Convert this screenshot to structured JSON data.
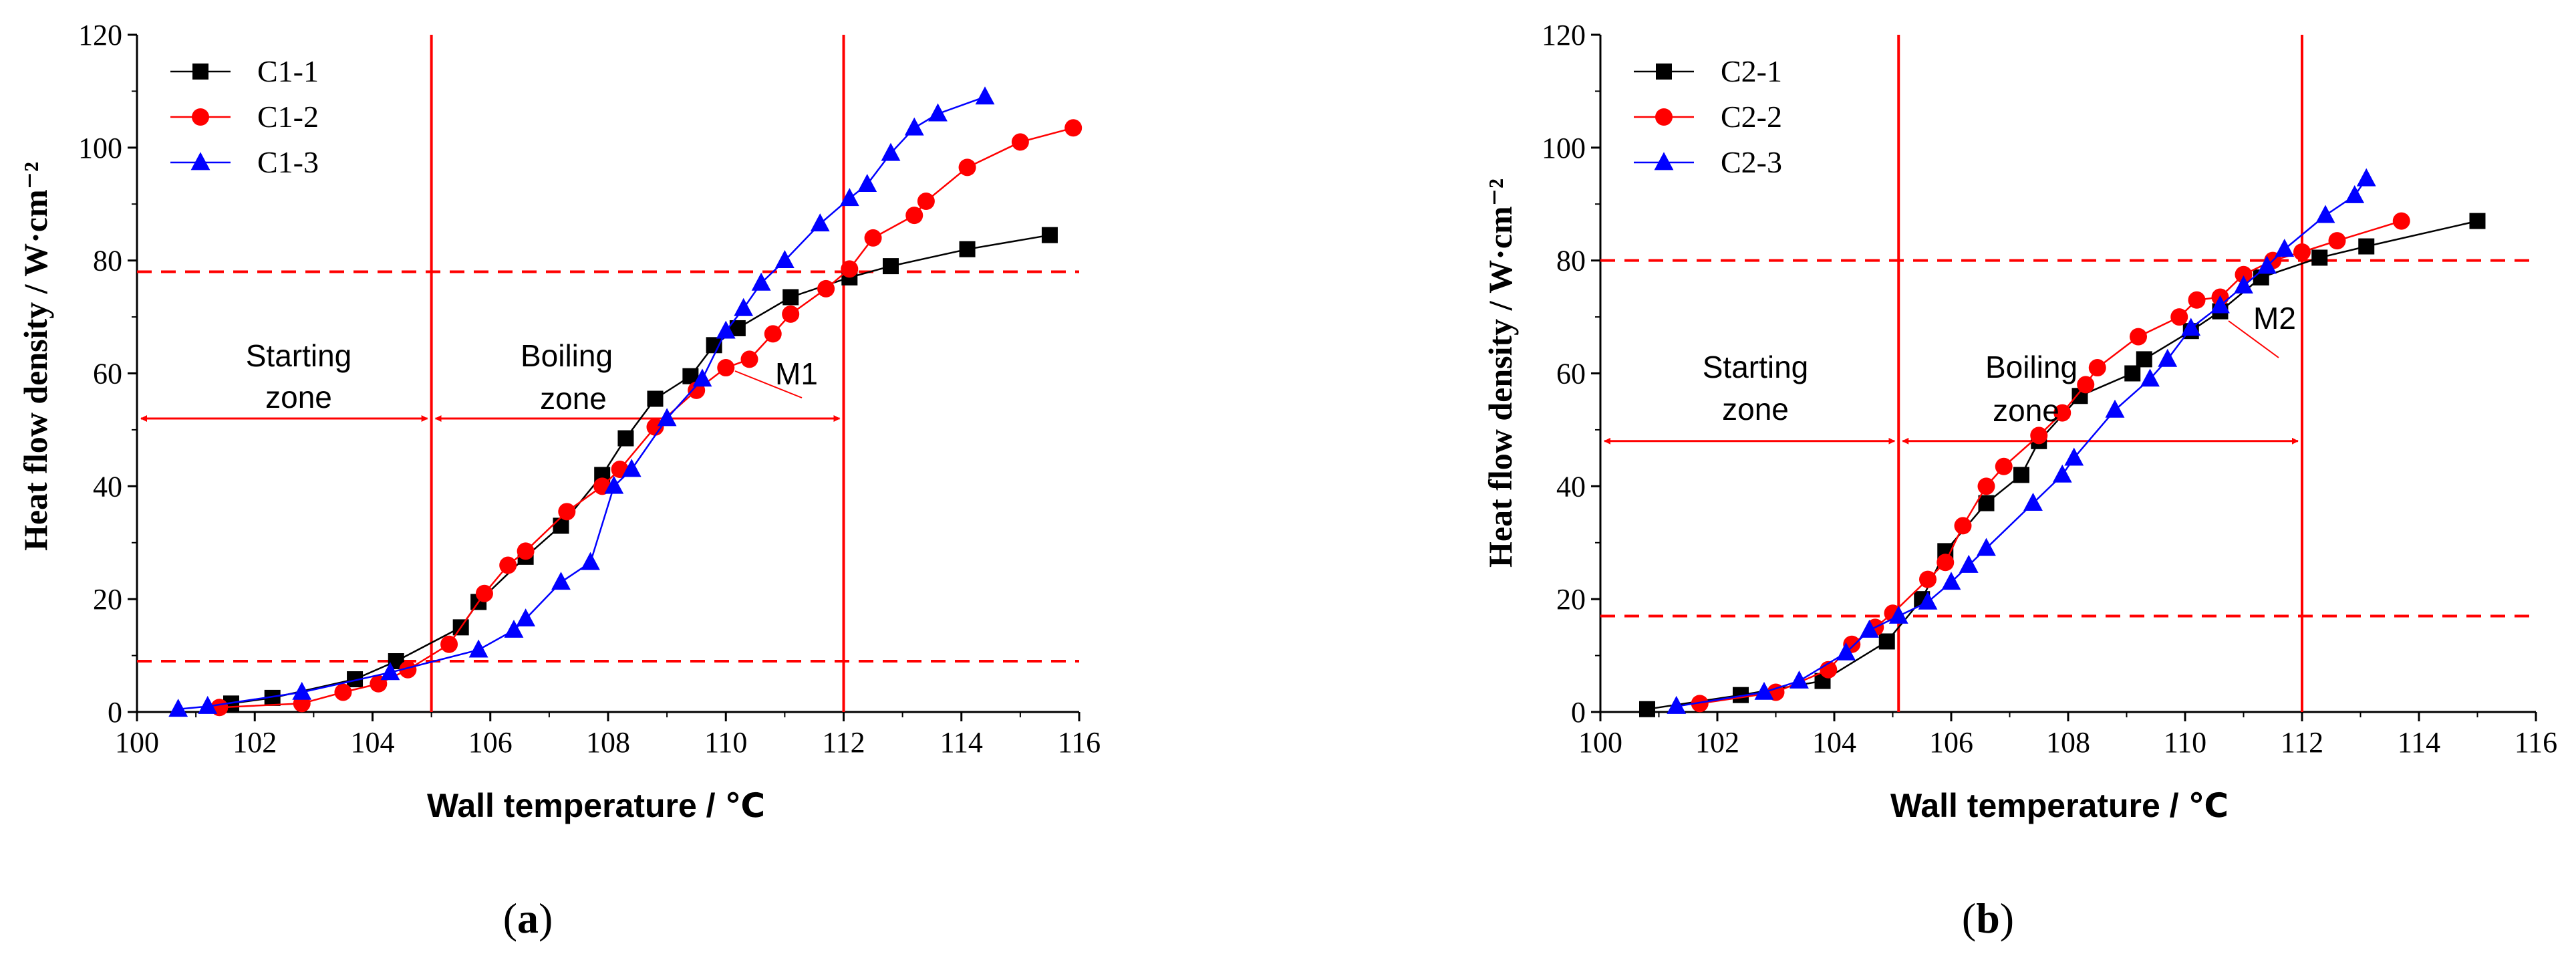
{
  "chart_data": [
    {
      "type": "line",
      "panel_label": "(a)",
      "panel_letter": "a",
      "xlabel": "Wall temperature / ℃",
      "ylabel": "Heat flow density / W·cm⁻²",
      "xlim": [
        100,
        116
      ],
      "ylim": [
        0,
        120
      ],
      "xticks": [
        100,
        102,
        104,
        106,
        108,
        110,
        112,
        114,
        116
      ],
      "yticks": [
        0,
        20,
        40,
        60,
        80,
        100,
        120
      ],
      "legend_position": "top-left",
      "series": [
        {
          "name": "C1-1",
          "color": "#000000",
          "marker": "square",
          "x": [
            101.6,
            102.3,
            103.7,
            104.4,
            105.5,
            105.8,
            106.6,
            107.2,
            107.9,
            108.3,
            108.8,
            109.4,
            109.8,
            110.2,
            111.1,
            112.1,
            112.8,
            114.1,
            115.5
          ],
          "y": [
            1.5,
            2.5,
            5.8,
            9.0,
            15.0,
            19.5,
            27.5,
            33.0,
            42.0,
            48.5,
            55.5,
            59.5,
            65.0,
            68.0,
            73.5,
            77.0,
            79.0,
            82.0,
            84.5
          ]
        },
        {
          "name": "C1-2",
          "color": "#ff0000",
          "marker": "circle",
          "x": [
            101.4,
            102.8,
            103.5,
            104.1,
            104.6,
            105.3,
            105.9,
            106.3,
            106.6,
            107.3,
            107.9,
            108.2,
            108.8,
            109.5,
            110.0,
            110.4,
            110.8,
            111.1,
            111.7,
            112.1,
            112.5,
            113.2,
            113.4,
            114.1,
            115.0,
            115.9
          ],
          "y": [
            0.8,
            1.5,
            3.5,
            5.0,
            7.5,
            12.0,
            21.0,
            26.0,
            28.5,
            35.5,
            40.0,
            43.0,
            50.5,
            57.0,
            61.0,
            62.5,
            67.0,
            70.5,
            75.0,
            78.5,
            84.0,
            88.0,
            90.5,
            96.5,
            101.0,
            103.5
          ]
        },
        {
          "name": "C1-3",
          "color": "#0000ff",
          "marker": "triangle",
          "x": [
            100.7,
            101.2,
            102.8,
            104.3,
            105.8,
            106.4,
            106.6,
            107.2,
            107.7,
            108.1,
            108.4,
            109.0,
            109.6,
            110.0,
            110.3,
            110.6,
            111.0,
            111.6,
            112.1,
            112.4,
            112.8,
            113.2,
            113.6,
            114.4
          ],
          "y": [
            0.5,
            1.0,
            3.5,
            7.0,
            11.0,
            14.5,
            16.5,
            23.0,
            26.5,
            40.0,
            43.0,
            52.0,
            59.0,
            67.5,
            71.5,
            76.0,
            80.0,
            86.5,
            91.0,
            93.5,
            99.0,
            103.5,
            106.0,
            109.0
          ]
        }
      ],
      "hlines": [
        78,
        9
      ],
      "vlines": [
        105,
        112
      ],
      "zones": [
        {
          "line1": "Starting",
          "line2": "zone",
          "x_from": 100,
          "x_to": 105
        },
        {
          "line1": "Boiling",
          "line2": "zone",
          "x_from": 105,
          "x_to": 112
        }
      ],
      "zone_arrow_y": 52,
      "annotation": {
        "text": "M1",
        "x": 111.0,
        "y": 59.0
      }
    },
    {
      "type": "line",
      "panel_label": "(b)",
      "panel_letter": "b",
      "xlabel": "Wall temperature / ℃",
      "ylabel": "Heat flow density / W·cm⁻²",
      "xlim": [
        100,
        116
      ],
      "ylim": [
        0,
        120
      ],
      "xticks": [
        100,
        102,
        104,
        106,
        108,
        110,
        112,
        114,
        116
      ],
      "yticks": [
        0,
        20,
        40,
        60,
        80,
        100,
        120
      ],
      "legend_position": "top-left",
      "series": [
        {
          "name": "C2-1",
          "color": "#000000",
          "marker": "square",
          "x": [
            100.8,
            102.4,
            103.8,
            104.9,
            105.5,
            105.9,
            106.6,
            107.2,
            107.5,
            108.2,
            109.1,
            109.3,
            110.1,
            110.6,
            111.3,
            112.3,
            113.1,
            115.0
          ],
          "y": [
            0.5,
            3.0,
            5.5,
            12.5,
            20.0,
            28.5,
            37.0,
            42.0,
            48.0,
            56.0,
            60.0,
            62.5,
            67.5,
            71.0,
            77.0,
            80.5,
            82.5,
            87.0
          ],
          "y_print": []
        },
        {
          "name": "C2-2",
          "color": "#ff0000",
          "marker": "circle",
          "x": [
            101.7,
            103.0,
            103.9,
            104.3,
            104.7,
            105.0,
            105.6,
            105.9,
            106.2,
            106.6,
            106.9,
            107.5,
            107.9,
            108.3,
            108.5,
            109.2,
            109.9,
            110.2,
            110.6,
            111.0,
            111.5,
            112.0,
            112.6,
            113.7
          ],
          "y": [
            1.5,
            3.5,
            7.5,
            12.0,
            15.0,
            17.5,
            23.5,
            26.5,
            33.0,
            40.0,
            43.5,
            49.0,
            53.0,
            58.0,
            61.0,
            66.5,
            70.0,
            73.0,
            73.5,
            77.5,
            80.0,
            81.5,
            83.5,
            87.0
          ]
        },
        {
          "name": "C2-3",
          "color": "#0000ff",
          "marker": "triangle",
          "x": [
            101.3,
            102.8,
            103.4,
            104.2,
            104.6,
            105.1,
            105.6,
            106.0,
            106.3,
            106.6,
            107.4,
            107.9,
            108.1,
            108.8,
            109.4,
            109.7,
            110.1,
            110.6,
            111.0,
            111.4,
            111.7,
            112.4,
            112.9,
            113.1
          ],
          "y": [
            1.0,
            3.5,
            5.5,
            10.5,
            14.5,
            17.0,
            19.5,
            23.0,
            26.0,
            29.0,
            37.0,
            42.0,
            45.0,
            53.5,
            59.0,
            62.5,
            68.0,
            72.0,
            75.5,
            79.0,
            82.0,
            88.0,
            91.5,
            94.5
          ]
        }
      ],
      "hlines": [
        80,
        17
      ],
      "vlines": [
        105.1,
        112
      ],
      "zones": [
        {
          "line1": "Starting",
          "line2": "zone",
          "x_from": 100,
          "x_to": 105.1
        },
        {
          "line1": "Boiling",
          "line2": "zone",
          "x_from": 105.1,
          "x_to": 112
        }
      ],
      "zone_arrow_y": 48,
      "annotation": {
        "text": "M2",
        "x": 111.5,
        "y": 64.0
      }
    }
  ]
}
